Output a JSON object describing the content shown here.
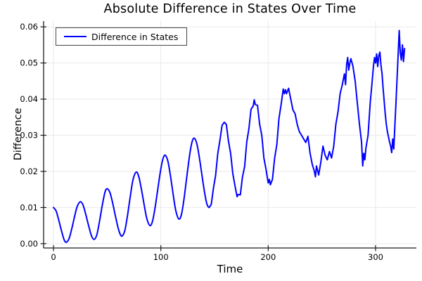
{
  "chart_data": {
    "type": "line",
    "title": "Absolute Difference in States Over Time",
    "xlabel": "Time",
    "ylabel": "Difference",
    "grid": true,
    "legend_position": "top-left",
    "xlim": [
      -9.2,
      338
    ],
    "ylim": [
      -0.0012,
      0.0616
    ],
    "x_ticks": {
      "values": [
        0,
        100,
        200,
        300
      ],
      "labels": [
        "0",
        "100",
        "200",
        "300"
      ]
    },
    "y_ticks": {
      "values": [
        0.0,
        0.01,
        0.02,
        0.03,
        0.04,
        0.05,
        0.06
      ],
      "labels": [
        "0.00",
        "0.01",
        "0.02",
        "0.03",
        "0.04",
        "0.05",
        "0.06"
      ]
    },
    "series": [
      {
        "name": "Difference in States",
        "color": "#0000ff",
        "points": [
          [
            0,
            0.01
          ],
          [
            2.5,
            0.009
          ],
          [
            5,
            0.0064
          ],
          [
            7.5,
            0.0035
          ],
          [
            10,
            0.001
          ],
          [
            12,
            0.0004
          ],
          [
            14.5,
            0.0014
          ],
          [
            17,
            0.0041
          ],
          [
            19.5,
            0.0073
          ],
          [
            22,
            0.0102
          ],
          [
            25,
            0.0116
          ],
          [
            27.5,
            0.0107
          ],
          [
            30,
            0.0082
          ],
          [
            32.5,
            0.0052
          ],
          [
            35.5,
            0.0021
          ],
          [
            38,
            0.0012
          ],
          [
            40.5,
            0.0026
          ],
          [
            43,
            0.0064
          ],
          [
            45.5,
            0.0107
          ],
          [
            48,
            0.0143
          ],
          [
            50,
            0.0152
          ],
          [
            52.5,
            0.0142
          ],
          [
            55,
            0.0114
          ],
          [
            57.5,
            0.0079
          ],
          [
            60,
            0.0046
          ],
          [
            62,
            0.0027
          ],
          [
            64,
            0.0021
          ],
          [
            66.5,
            0.0037
          ],
          [
            69,
            0.0079
          ],
          [
            71.5,
            0.013
          ],
          [
            74,
            0.0176
          ],
          [
            77,
            0.0198
          ],
          [
            79.5,
            0.0185
          ],
          [
            82,
            0.0149
          ],
          [
            84.5,
            0.0107
          ],
          [
            87,
            0.0069
          ],
          [
            90,
            0.005
          ],
          [
            92.5,
            0.0065
          ],
          [
            95,
            0.0107
          ],
          [
            97.5,
            0.0158
          ],
          [
            100,
            0.0207
          ],
          [
            102,
            0.0235
          ],
          [
            104,
            0.0245
          ],
          [
            106.5,
            0.0229
          ],
          [
            109,
            0.0187
          ],
          [
            111.5,
            0.0136
          ],
          [
            114,
            0.009
          ],
          [
            117,
            0.0068
          ],
          [
            119.5,
            0.0085
          ],
          [
            122,
            0.0133
          ],
          [
            124.5,
            0.0193
          ],
          [
            127,
            0.0249
          ],
          [
            129,
            0.0281
          ],
          [
            131,
            0.0292
          ],
          [
            133.5,
            0.0277
          ],
          [
            136,
            0.0236
          ],
          [
            138.5,
            0.0185
          ],
          [
            141,
            0.0137
          ],
          [
            143,
            0.0109
          ],
          [
            145,
            0.01
          ],
          [
            147,
            0.0109
          ],
          [
            149,
            0.0154
          ],
          [
            151,
            0.0188
          ],
          [
            153,
            0.0249
          ],
          [
            155,
            0.0286
          ],
          [
            157,
            0.0327
          ],
          [
            159,
            0.0336
          ],
          [
            161,
            0.033
          ],
          [
            163,
            0.0283
          ],
          [
            165,
            0.025
          ],
          [
            167,
            0.0194
          ],
          [
            169,
            0.0161
          ],
          [
            171,
            0.013
          ],
          [
            172,
            0.0136
          ],
          [
            174,
            0.0135
          ],
          [
            176,
            0.0184
          ],
          [
            178,
            0.0213
          ],
          [
            180,
            0.0281
          ],
          [
            182,
            0.0318
          ],
          [
            184,
            0.0372
          ],
          [
            186,
            0.0381
          ],
          [
            187,
            0.0398
          ],
          [
            188,
            0.0385
          ],
          [
            190,
            0.0383
          ],
          [
            192,
            0.0331
          ],
          [
            194,
            0.03
          ],
          [
            196,
            0.0237
          ],
          [
            198,
            0.0205
          ],
          [
            200,
            0.0168
          ],
          [
            201,
            0.0178
          ],
          [
            202,
            0.0163
          ],
          [
            204,
            0.0178
          ],
          [
            206,
            0.0237
          ],
          [
            208,
            0.0274
          ],
          [
            210,
            0.0346
          ],
          [
            212,
            0.0385
          ],
          [
            214,
            0.0428
          ],
          [
            215,
            0.0415
          ],
          [
            216,
            0.0426
          ],
          [
            217,
            0.0415
          ],
          [
            219,
            0.043
          ],
          [
            221,
            0.04
          ],
          [
            223,
            0.037
          ],
          [
            225,
            0.036
          ],
          [
            227,
            0.033
          ],
          [
            229,
            0.031
          ],
          [
            231,
            0.03
          ],
          [
            233,
            0.029
          ],
          [
            235,
            0.028
          ],
          [
            237,
            0.0297
          ],
          [
            239,
            0.025
          ],
          [
            241,
            0.022
          ],
          [
            243,
            0.02
          ],
          [
            244,
            0.0185
          ],
          [
            245,
            0.0215
          ],
          [
            247,
            0.019
          ],
          [
            249,
            0.0225
          ],
          [
            251,
            0.027
          ],
          [
            253,
            0.0245
          ],
          [
            255,
            0.0232
          ],
          [
            257,
            0.0255
          ],
          [
            259,
            0.0237
          ],
          [
            261,
            0.027
          ],
          [
            263,
            0.033
          ],
          [
            265,
            0.0365
          ],
          [
            267,
            0.0415
          ],
          [
            269,
            0.044
          ],
          [
            271,
            0.047
          ],
          [
            272,
            0.044
          ],
          [
            273,
            0.0495
          ],
          [
            274,
            0.0515
          ],
          [
            275,
            0.048
          ],
          [
            276,
            0.05
          ],
          [
            277,
            0.0512
          ],
          [
            279,
            0.049
          ],
          [
            281,
            0.045
          ],
          [
            283,
            0.039
          ],
          [
            285,
            0.033
          ],
          [
            287,
            0.028
          ],
          [
            288,
            0.0215
          ],
          [
            289,
            0.025
          ],
          [
            290,
            0.0232
          ],
          [
            291,
            0.0265
          ],
          [
            293,
            0.03
          ],
          [
            295,
            0.039
          ],
          [
            297,
            0.0455
          ],
          [
            298,
            0.049
          ],
          [
            299,
            0.0515
          ],
          [
            300,
            0.05
          ],
          [
            301,
            0.0525
          ],
          [
            302,
            0.049
          ],
          [
            303,
            0.052
          ],
          [
            304,
            0.053
          ],
          [
            305,
            0.0495
          ],
          [
            306,
            0.047
          ],
          [
            307,
            0.043
          ],
          [
            308,
            0.0395
          ],
          [
            309,
            0.036
          ],
          [
            310,
            0.033
          ],
          [
            311,
            0.031
          ],
          [
            312,
            0.0296
          ],
          [
            313,
            0.0282
          ],
          [
            314,
            0.027
          ],
          [
            315,
            0.0252
          ],
          [
            316,
            0.029
          ],
          [
            317,
            0.0262
          ],
          [
            318,
            0.033
          ],
          [
            319,
            0.039
          ],
          [
            320,
            0.0455
          ],
          [
            321,
            0.052
          ],
          [
            322,
            0.059
          ],
          [
            323,
            0.0528
          ],
          [
            324,
            0.0508
          ],
          [
            325,
            0.055
          ],
          [
            326,
            0.0504
          ],
          [
            327,
            0.054
          ]
        ]
      }
    ],
    "colors": {
      "line": "#0000ff",
      "grid": "#e9e9e9",
      "spine": "#1a1a1a",
      "background": "#ffffff",
      "legend_border": "#454545"
    }
  }
}
